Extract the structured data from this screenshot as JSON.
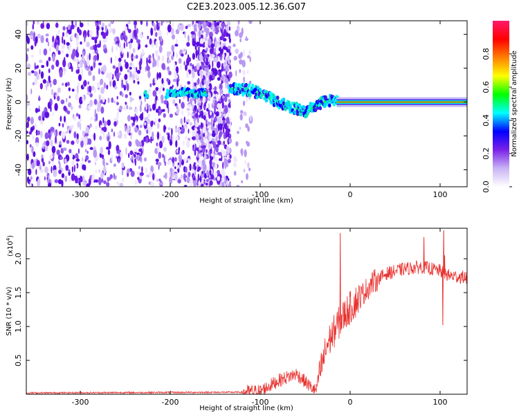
{
  "title": "C2E3.2023.005.12.36.G07",
  "chart_data": [
    {
      "type": "heatmap",
      "xlabel": "Height of straight line (km)",
      "ylabel": "Frequency (Hz)",
      "xlim": [
        -360,
        130
      ],
      "ylim": [
        -50,
        48
      ],
      "xticks": [
        -300,
        -200,
        -100,
        0,
        100
      ],
      "yticks": [
        -40,
        -20,
        0,
        20,
        40
      ],
      "colorbar": {
        "label": "Normalized spectral amplitude",
        "range": [
          0,
          1
        ],
        "ticks": [
          "0.0",
          "0.2",
          "0.4",
          "0.6",
          "0.8"
        ],
        "colors": [
          "#ffffff",
          "#c8b4f4",
          "#7a22e8",
          "#0000ff",
          "#00ffff",
          "#00ff00",
          "#ffff00",
          "#ff8000",
          "#ff0000",
          "#ff1b6b"
        ]
      },
      "noise_regions": [
        {
          "x": [
            -360,
            -230
          ],
          "density": "high"
        },
        {
          "x": [
            -228,
            -177
          ],
          "density": "medium"
        },
        {
          "x": [
            -175,
            -133
          ],
          "density": "high"
        },
        {
          "x": [
            -130,
            -110
          ],
          "density": "low"
        }
      ],
      "signal_track": [
        {
          "x": -228,
          "y": 4
        },
        {
          "x": -200,
          "y": 5
        },
        {
          "x": -185,
          "y": 6
        },
        {
          "x": -170,
          "y": 5
        },
        {
          "x": -130,
          "y": 8
        },
        {
          "x": -110,
          "y": 7
        },
        {
          "x": -95,
          "y": 4
        },
        {
          "x": -80,
          "y": 0
        },
        {
          "x": -65,
          "y": -3
        },
        {
          "x": -50,
          "y": -6
        },
        {
          "x": -40,
          "y": -3
        },
        {
          "x": -30,
          "y": 0
        },
        {
          "x": -20,
          "y": 1
        },
        {
          "x": 0,
          "y": 0
        },
        {
          "x": 50,
          "y": 0
        },
        {
          "x": 100,
          "y": 0
        },
        {
          "x": 130,
          "y": 0
        }
      ]
    },
    {
      "type": "line",
      "xlabel": "Height of straight line (km)",
      "ylabel": "SNR (10 * v/v)",
      "yscale_label": "(x10",
      "yscale_exp": "4",
      "yscale_close": ")",
      "xlim": [
        -360,
        130
      ],
      "ylim": [
        0,
        2.45
      ],
      "xticks": [
        -300,
        -200,
        -100,
        0,
        100
      ],
      "yticks": [
        0.5,
        1.0,
        1.5,
        2.0
      ],
      "ytick_labels": [
        "0.5",
        "1.0",
        "1.5",
        "2.0"
      ],
      "color": "#e8322f",
      "series_points": [
        {
          "x": -360,
          "y": 0.02
        },
        {
          "x": -120,
          "y": 0.03
        },
        {
          "x": -100,
          "y": 0.05
        },
        {
          "x": -90,
          "y": 0.12
        },
        {
          "x": -80,
          "y": 0.2
        },
        {
          "x": -70,
          "y": 0.25
        },
        {
          "x": -60,
          "y": 0.3
        },
        {
          "x": -55,
          "y": 0.25
        },
        {
          "x": -45,
          "y": 0.12
        },
        {
          "x": -38,
          "y": 0.05
        },
        {
          "x": -33,
          "y": 0.35
        },
        {
          "x": -25,
          "y": 0.75
        },
        {
          "x": -15,
          "y": 1.0
        },
        {
          "x": -5,
          "y": 1.2
        },
        {
          "x": 5,
          "y": 1.35
        },
        {
          "x": 15,
          "y": 1.5
        },
        {
          "x": 25,
          "y": 1.65
        },
        {
          "x": 40,
          "y": 1.78
        },
        {
          "x": 60,
          "y": 1.85
        },
        {
          "x": 80,
          "y": 1.88
        },
        {
          "x": 100,
          "y": 1.82
        },
        {
          "x": 110,
          "y": 1.75
        },
        {
          "x": 130,
          "y": 1.72
        }
      ],
      "spikes": [
        {
          "x": -11,
          "y": 2.38
        },
        {
          "x": 82,
          "y": 2.32
        },
        {
          "x": 105,
          "y": 2.05
        },
        {
          "x": 104,
          "y": 2.42
        },
        {
          "x": 103,
          "y": 1.02
        }
      ]
    }
  ]
}
